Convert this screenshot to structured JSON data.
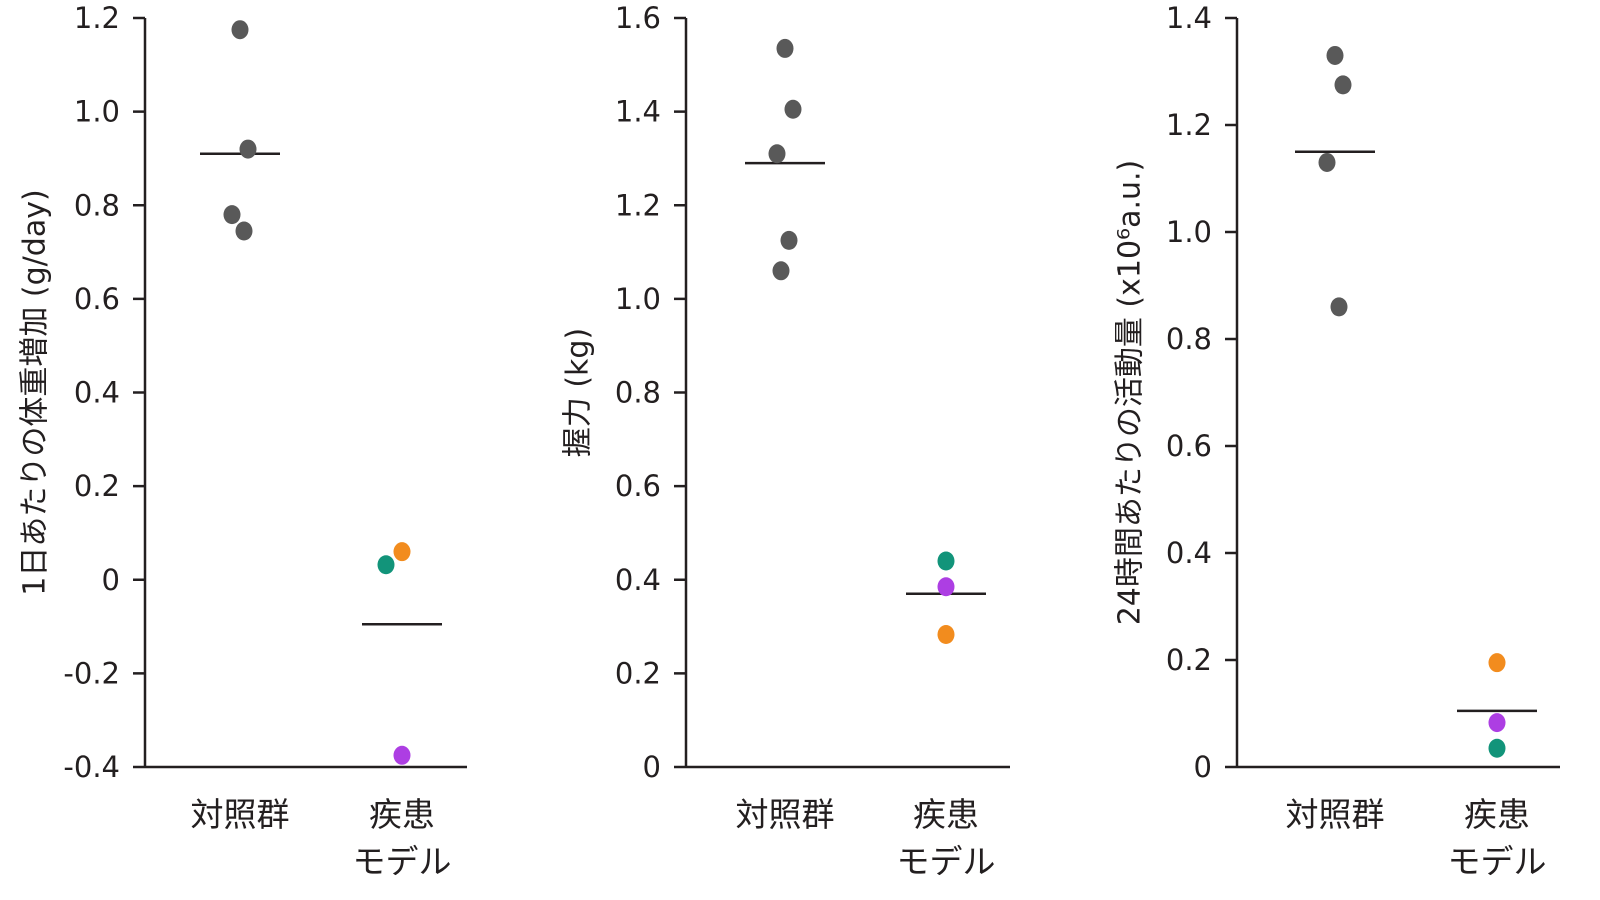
{
  "chart_data": [
    {
      "type": "scatter",
      "ylabel": "1日あたりの体重増加 (g/day)",
      "ylim": [
        -0.4,
        1.2
      ],
      "yticks": [
        "1.2",
        "1.0",
        "0.8",
        "0.6",
        "0.4",
        "0.2",
        "0",
        "-0.2",
        "-0.4"
      ],
      "categories": [
        {
          "label": [
            "対照群"
          ],
          "mean": 0.91,
          "points": [
            {
              "y": 1.175,
              "c": "#595959"
            },
            {
              "y": 0.92,
              "c": "#595959"
            },
            {
              "y": 0.78,
              "c": "#595959"
            },
            {
              "y": 0.745,
              "c": "#595959"
            }
          ]
        },
        {
          "label": [
            "疾患",
            "モデル"
          ],
          "mean": -0.095,
          "points": [
            {
              "y": 0.06,
              "c": "#f28c1e"
            },
            {
              "y": 0.032,
              "c": "#12947a"
            },
            {
              "y": -0.375,
              "c": "#ad3ee3"
            }
          ]
        }
      ]
    },
    {
      "type": "scatter",
      "ylabel": "握力 (kg)",
      "ylim": [
        0,
        1.6
      ],
      "yticks": [
        "1.6",
        "1.4",
        "1.2",
        "1.0",
        "0.8",
        "0.6",
        "0.4",
        "0.2",
        "0"
      ],
      "categories": [
        {
          "label": [
            "対照群"
          ],
          "mean": 1.29,
          "points": [
            {
              "y": 1.535,
              "c": "#595959"
            },
            {
              "y": 1.405,
              "c": "#595959"
            },
            {
              "y": 1.31,
              "c": "#595959"
            },
            {
              "y": 1.125,
              "c": "#595959"
            },
            {
              "y": 1.06,
              "c": "#595959"
            }
          ]
        },
        {
          "label": [
            "疾患",
            "モデル"
          ],
          "mean": 0.37,
          "points": [
            {
              "y": 0.44,
              "c": "#12947a"
            },
            {
              "y": 0.385,
              "c": "#ad3ee3"
            },
            {
              "y": 0.283,
              "c": "#f28c1e"
            }
          ]
        }
      ]
    },
    {
      "type": "scatter",
      "ylabel": "24時間あたりの活動量 (x10⁶a.u.)",
      "ylim": [
        0,
        1.4
      ],
      "yticks": [
        "1.4",
        "1.2",
        "1.0",
        "0.8",
        "0.6",
        "0.4",
        "0.2",
        "0"
      ],
      "categories": [
        {
          "label": [
            "対照群"
          ],
          "mean": 1.15,
          "points": [
            {
              "y": 1.33,
              "c": "#595959"
            },
            {
              "y": 1.275,
              "c": "#595959"
            },
            {
              "y": 1.13,
              "c": "#595959"
            },
            {
              "y": 0.86,
              "c": "#595959"
            }
          ]
        },
        {
          "label": [
            "疾患",
            "モデル"
          ],
          "mean": 0.105,
          "points": [
            {
              "y": 0.195,
              "c": "#f28c1e"
            },
            {
              "y": 0.083,
              "c": "#ad3ee3"
            },
            {
              "y": 0.035,
              "c": "#12947a"
            }
          ]
        }
      ]
    }
  ]
}
